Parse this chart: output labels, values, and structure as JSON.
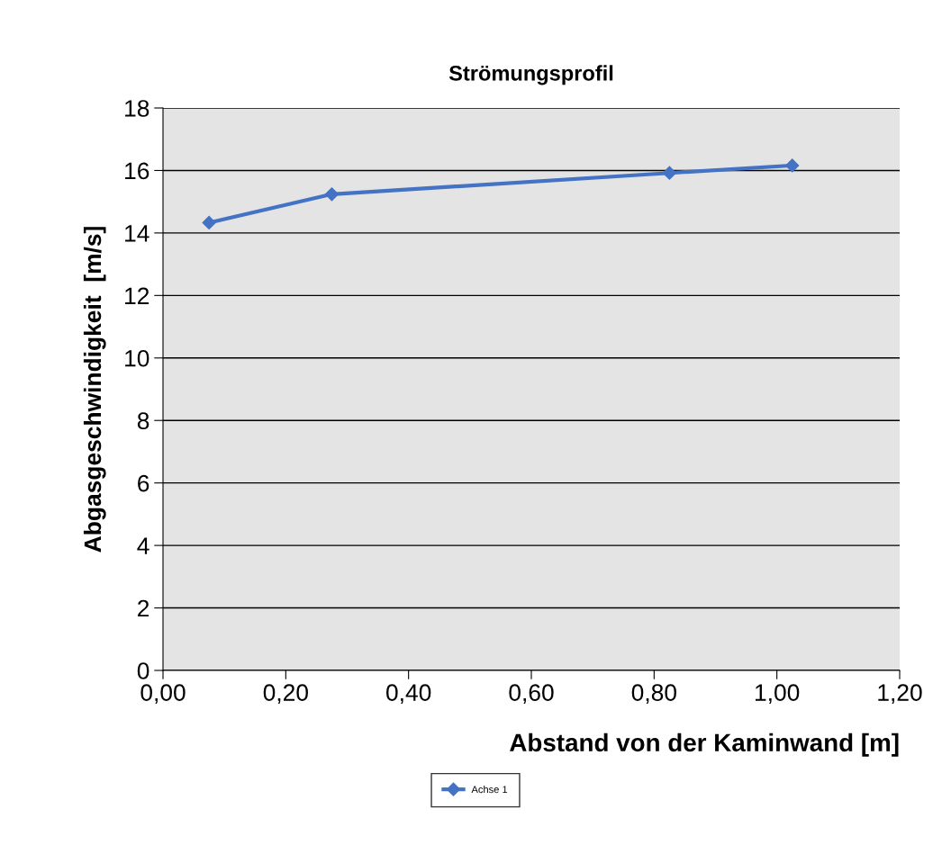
{
  "chart_data": {
    "type": "line",
    "title": "Strömungsprofil",
    "xlabel": "Abstand von der Kaminwand [m]",
    "ylabel": "Abgasgeschwindigkeit  [m/s]",
    "x": [
      0.075,
      0.275,
      0.825,
      1.025
    ],
    "series": [
      {
        "name": "Achse 1",
        "color": "#4472c4",
        "values": [
          14.33,
          15.24,
          15.92,
          16.16
        ]
      }
    ],
    "xlim": [
      0,
      1.2
    ],
    "xticks": [
      {
        "value": 0,
        "label": "0,00"
      },
      {
        "value": 0.2,
        "label": "0,20"
      },
      {
        "value": 0.4,
        "label": "0,40"
      },
      {
        "value": 0.6,
        "label": "0,60"
      },
      {
        "value": 0.8,
        "label": "0,80"
      },
      {
        "value": 1.0,
        "label": "1,00"
      },
      {
        "value": 1.2,
        "label": "1,20"
      }
    ],
    "ylim": [
      0,
      18
    ],
    "yticks": [
      0,
      2,
      4,
      6,
      8,
      10,
      12,
      14,
      16,
      18
    ],
    "grid": "y",
    "marker": "diamond",
    "line_style": "solid",
    "legend": "bottom"
  }
}
